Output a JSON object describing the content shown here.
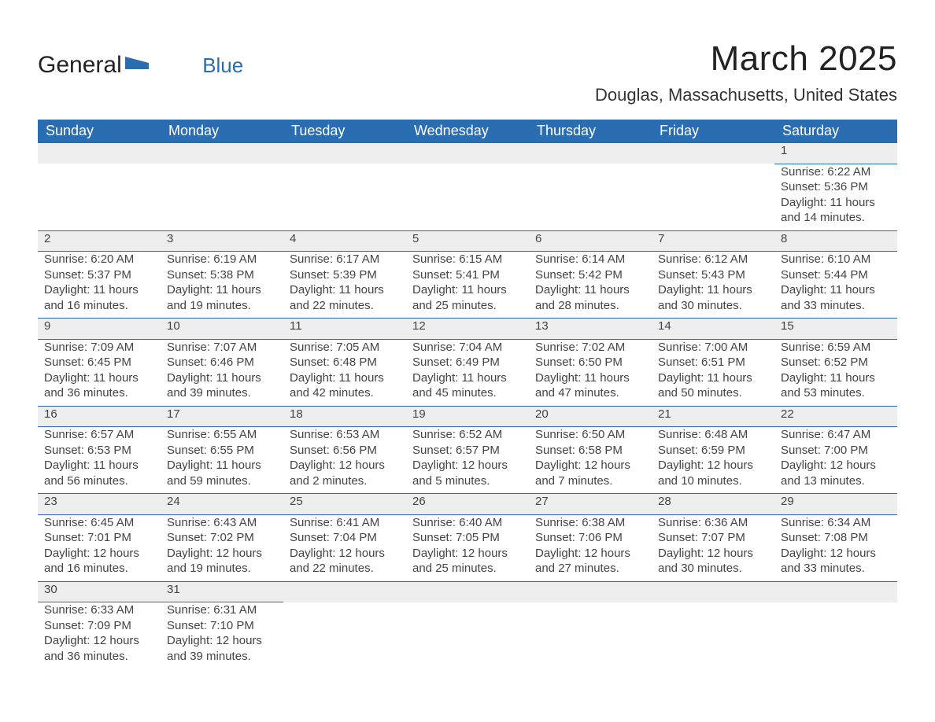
{
  "logo": {
    "text_top": "General",
    "text_bottom": "Blue",
    "flag_color": "#2a6db0"
  },
  "header": {
    "month_title": "March 2025",
    "location": "Douglas, Massachusetts, United States"
  },
  "colors": {
    "header_bg": "#2a6db0",
    "header_text": "#ffffff",
    "daynum_bg": "#eeeeee",
    "row_divider": "#2a6db0",
    "body_text": "#444444",
    "page_bg": "#ffffff"
  },
  "weekdays": [
    "Sunday",
    "Monday",
    "Tuesday",
    "Wednesday",
    "Thursday",
    "Friday",
    "Saturday"
  ],
  "weeks": [
    [
      null,
      null,
      null,
      null,
      null,
      null,
      {
        "n": "1",
        "sunrise": "Sunrise: 6:22 AM",
        "sunset": "Sunset: 5:36 PM",
        "daylight": "Daylight: 11 hours and 14 minutes."
      }
    ],
    [
      {
        "n": "2",
        "sunrise": "Sunrise: 6:20 AM",
        "sunset": "Sunset: 5:37 PM",
        "daylight": "Daylight: 11 hours and 16 minutes."
      },
      {
        "n": "3",
        "sunrise": "Sunrise: 6:19 AM",
        "sunset": "Sunset: 5:38 PM",
        "daylight": "Daylight: 11 hours and 19 minutes."
      },
      {
        "n": "4",
        "sunrise": "Sunrise: 6:17 AM",
        "sunset": "Sunset: 5:39 PM",
        "daylight": "Daylight: 11 hours and 22 minutes."
      },
      {
        "n": "5",
        "sunrise": "Sunrise: 6:15 AM",
        "sunset": "Sunset: 5:41 PM",
        "daylight": "Daylight: 11 hours and 25 minutes."
      },
      {
        "n": "6",
        "sunrise": "Sunrise: 6:14 AM",
        "sunset": "Sunset: 5:42 PM",
        "daylight": "Daylight: 11 hours and 28 minutes."
      },
      {
        "n": "7",
        "sunrise": "Sunrise: 6:12 AM",
        "sunset": "Sunset: 5:43 PM",
        "daylight": "Daylight: 11 hours and 30 minutes."
      },
      {
        "n": "8",
        "sunrise": "Sunrise: 6:10 AM",
        "sunset": "Sunset: 5:44 PM",
        "daylight": "Daylight: 11 hours and 33 minutes."
      }
    ],
    [
      {
        "n": "9",
        "sunrise": "Sunrise: 7:09 AM",
        "sunset": "Sunset: 6:45 PM",
        "daylight": "Daylight: 11 hours and 36 minutes."
      },
      {
        "n": "10",
        "sunrise": "Sunrise: 7:07 AM",
        "sunset": "Sunset: 6:46 PM",
        "daylight": "Daylight: 11 hours and 39 minutes."
      },
      {
        "n": "11",
        "sunrise": "Sunrise: 7:05 AM",
        "sunset": "Sunset: 6:48 PM",
        "daylight": "Daylight: 11 hours and 42 minutes."
      },
      {
        "n": "12",
        "sunrise": "Sunrise: 7:04 AM",
        "sunset": "Sunset: 6:49 PM",
        "daylight": "Daylight: 11 hours and 45 minutes."
      },
      {
        "n": "13",
        "sunrise": "Sunrise: 7:02 AM",
        "sunset": "Sunset: 6:50 PM",
        "daylight": "Daylight: 11 hours and 47 minutes."
      },
      {
        "n": "14",
        "sunrise": "Sunrise: 7:00 AM",
        "sunset": "Sunset: 6:51 PM",
        "daylight": "Daylight: 11 hours and 50 minutes."
      },
      {
        "n": "15",
        "sunrise": "Sunrise: 6:59 AM",
        "sunset": "Sunset: 6:52 PM",
        "daylight": "Daylight: 11 hours and 53 minutes."
      }
    ],
    [
      {
        "n": "16",
        "sunrise": "Sunrise: 6:57 AM",
        "sunset": "Sunset: 6:53 PM",
        "daylight": "Daylight: 11 hours and 56 minutes."
      },
      {
        "n": "17",
        "sunrise": "Sunrise: 6:55 AM",
        "sunset": "Sunset: 6:55 PM",
        "daylight": "Daylight: 11 hours and 59 minutes."
      },
      {
        "n": "18",
        "sunrise": "Sunrise: 6:53 AM",
        "sunset": "Sunset: 6:56 PM",
        "daylight": "Daylight: 12 hours and 2 minutes."
      },
      {
        "n": "19",
        "sunrise": "Sunrise: 6:52 AM",
        "sunset": "Sunset: 6:57 PM",
        "daylight": "Daylight: 12 hours and 5 minutes."
      },
      {
        "n": "20",
        "sunrise": "Sunrise: 6:50 AM",
        "sunset": "Sunset: 6:58 PM",
        "daylight": "Daylight: 12 hours and 7 minutes."
      },
      {
        "n": "21",
        "sunrise": "Sunrise: 6:48 AM",
        "sunset": "Sunset: 6:59 PM",
        "daylight": "Daylight: 12 hours and 10 minutes."
      },
      {
        "n": "22",
        "sunrise": "Sunrise: 6:47 AM",
        "sunset": "Sunset: 7:00 PM",
        "daylight": "Daylight: 12 hours and 13 minutes."
      }
    ],
    [
      {
        "n": "23",
        "sunrise": "Sunrise: 6:45 AM",
        "sunset": "Sunset: 7:01 PM",
        "daylight": "Daylight: 12 hours and 16 minutes."
      },
      {
        "n": "24",
        "sunrise": "Sunrise: 6:43 AM",
        "sunset": "Sunset: 7:02 PM",
        "daylight": "Daylight: 12 hours and 19 minutes."
      },
      {
        "n": "25",
        "sunrise": "Sunrise: 6:41 AM",
        "sunset": "Sunset: 7:04 PM",
        "daylight": "Daylight: 12 hours and 22 minutes."
      },
      {
        "n": "26",
        "sunrise": "Sunrise: 6:40 AM",
        "sunset": "Sunset: 7:05 PM",
        "daylight": "Daylight: 12 hours and 25 minutes."
      },
      {
        "n": "27",
        "sunrise": "Sunrise: 6:38 AM",
        "sunset": "Sunset: 7:06 PM",
        "daylight": "Daylight: 12 hours and 27 minutes."
      },
      {
        "n": "28",
        "sunrise": "Sunrise: 6:36 AM",
        "sunset": "Sunset: 7:07 PM",
        "daylight": "Daylight: 12 hours and 30 minutes."
      },
      {
        "n": "29",
        "sunrise": "Sunrise: 6:34 AM",
        "sunset": "Sunset: 7:08 PM",
        "daylight": "Daylight: 12 hours and 33 minutes."
      }
    ],
    [
      {
        "n": "30",
        "sunrise": "Sunrise: 6:33 AM",
        "sunset": "Sunset: 7:09 PM",
        "daylight": "Daylight: 12 hours and 36 minutes."
      },
      {
        "n": "31",
        "sunrise": "Sunrise: 6:31 AM",
        "sunset": "Sunset: 7:10 PM",
        "daylight": "Daylight: 12 hours and 39 minutes."
      },
      null,
      null,
      null,
      null,
      null
    ]
  ]
}
